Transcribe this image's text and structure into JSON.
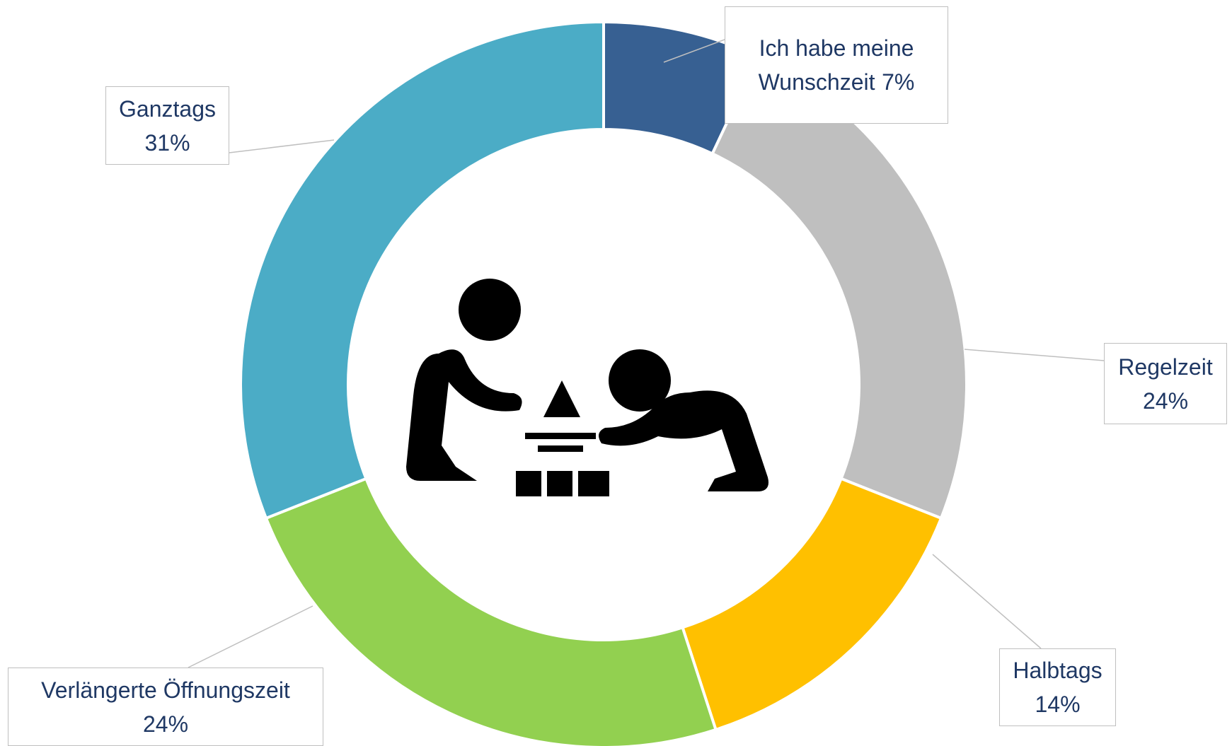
{
  "chart_data": {
    "type": "donut",
    "categories": [
      "Ich habe meine Wunschzeit",
      "Regelzeit",
      "Halbtags",
      "Verlängerte Öffnungszeit",
      "Ganztags"
    ],
    "values": [
      7,
      24,
      14,
      24,
      31
    ],
    "value_labels": [
      "7%",
      "24%",
      "14%",
      "24%",
      "31%"
    ],
    "colors": [
      "#376092",
      "#bfbfbf",
      "#ffc000",
      "#92d050",
      "#4bacc6"
    ]
  }
}
